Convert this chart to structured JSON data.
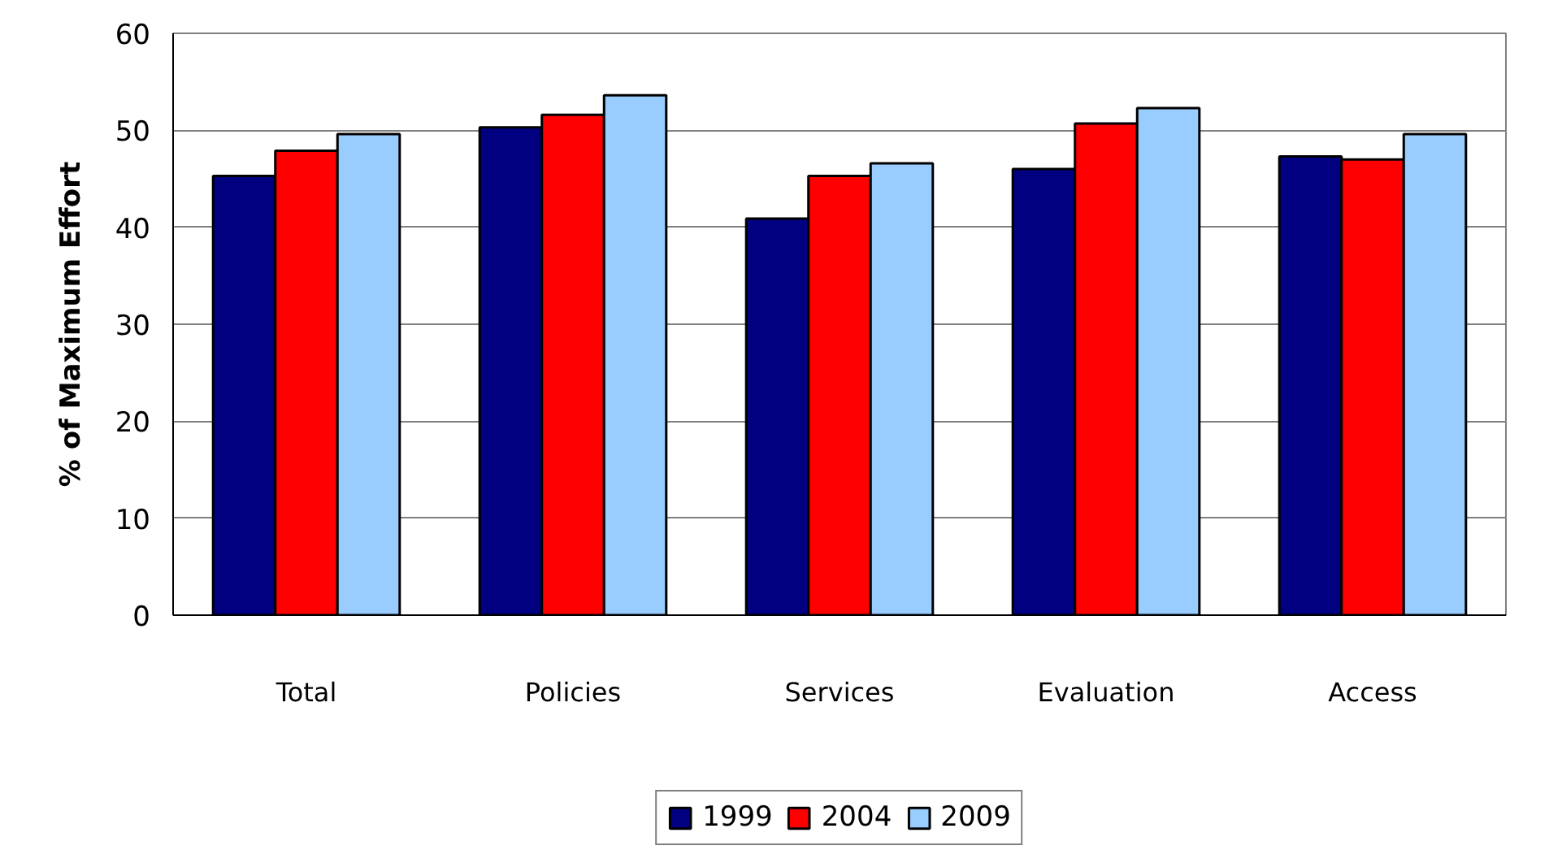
{
  "chart_data": {
    "type": "bar",
    "ylabel": "% of Maximum Effort",
    "categories": [
      "Total",
      "Policies",
      "Services",
      "Evaluation",
      "Access"
    ],
    "series": [
      {
        "name": "1999",
        "color": "#000080",
        "values": [
          45.3,
          50.3,
          40.9,
          46.0,
          47.3
        ]
      },
      {
        "name": "2004",
        "color": "#ff0000",
        "values": [
          47.9,
          51.6,
          45.3,
          50.7,
          47.0
        ]
      },
      {
        "name": "2009",
        "color": "#99ccff",
        "values": [
          49.6,
          53.6,
          46.6,
          52.3,
          49.6
        ]
      }
    ],
    "ylim": [
      0,
      60
    ],
    "yticks": [
      0,
      10,
      20,
      30,
      40,
      50,
      60
    ],
    "grid": "y",
    "legend": "bottom"
  }
}
